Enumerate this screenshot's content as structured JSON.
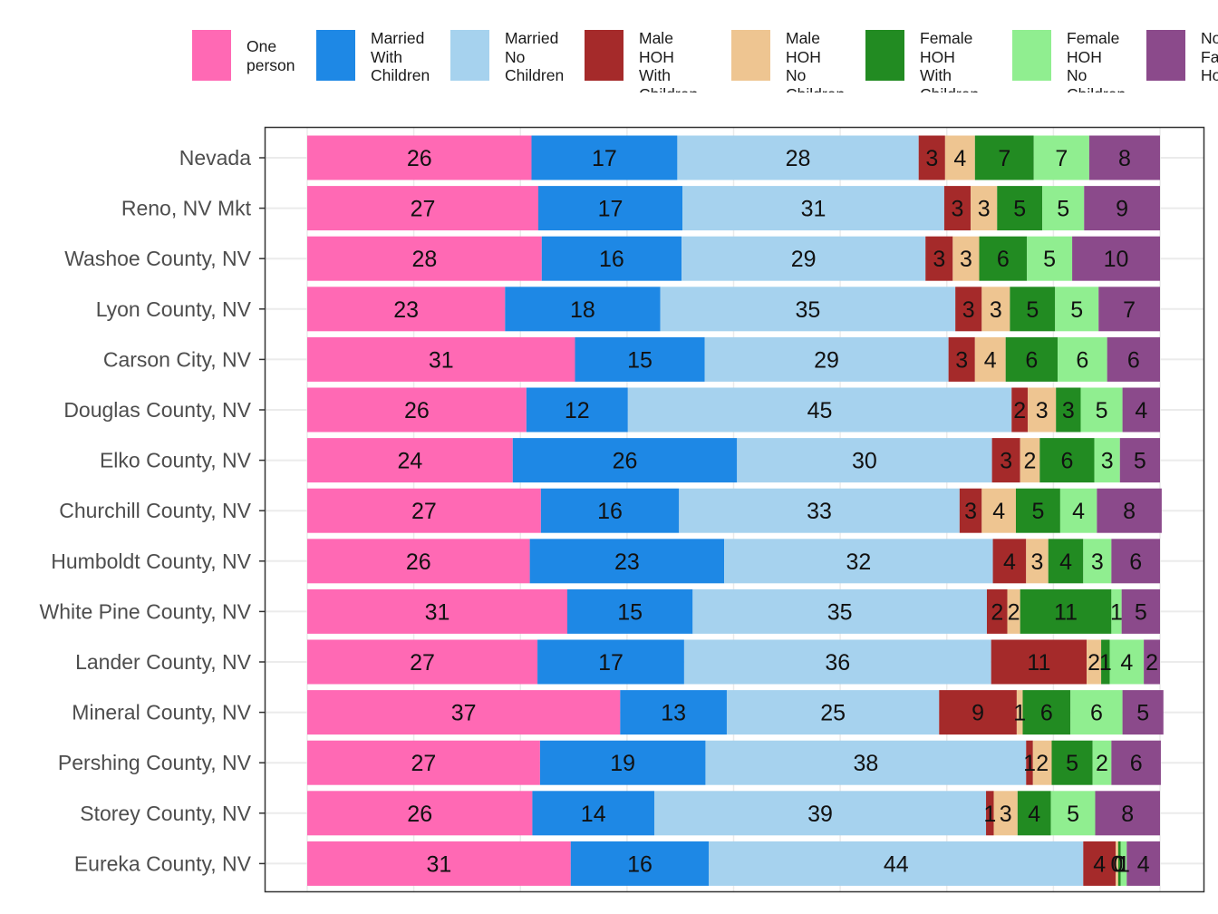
{
  "chart_data": {
    "type": "bar",
    "orientation": "horizontal",
    "stacked": true,
    "title": "",
    "xlabel": "",
    "ylabel": "",
    "xlim": [
      0,
      100
    ],
    "grid": true,
    "legend_position": "top",
    "categories": [
      "Nevada",
      "Reno, NV Mkt",
      "Washoe County, NV",
      "Lyon County, NV",
      "Carson City, NV",
      "Douglas County, NV",
      "Elko County, NV",
      "Churchill County, NV",
      "Humboldt County, NV",
      "White Pine County, NV",
      "Lander County, NV",
      "Mineral County, NV",
      "Pershing County, NV",
      "Storey County, NV",
      "Eureka County, NV"
    ],
    "series": [
      {
        "name": "One\nperson",
        "color": "#ff69b4",
        "values": [
          26.3,
          27.1,
          27.5,
          23.2,
          31.4,
          25.7,
          24.1,
          27.4,
          26.1,
          30.5,
          27.0,
          36.7,
          27.3,
          26.4,
          30.9
        ]
      },
      {
        "name": "Married\nWith\nChildren",
        "color": "#1e88e5",
        "values": [
          17.1,
          16.9,
          16.4,
          18.2,
          15.2,
          11.9,
          26.3,
          16.2,
          22.8,
          14.7,
          17.2,
          12.5,
          19.4,
          14.3,
          16.2
        ]
      },
      {
        "name": "Married\nNo\nChildren",
        "color": "#a6d2ee",
        "values": [
          28.3,
          30.7,
          28.6,
          34.6,
          28.6,
          45.0,
          29.9,
          32.9,
          31.5,
          34.5,
          36.0,
          24.9,
          37.6,
          38.9,
          43.9
        ]
      },
      {
        "name": "Male\nHOH With\nChildren",
        "color": "#a52a2a",
        "values": [
          3.1,
          3.1,
          3.2,
          3.1,
          3.1,
          1.9,
          3.3,
          2.6,
          3.9,
          2.4,
          11.2,
          9.1,
          0.8,
          0.9,
          3.8
        ]
      },
      {
        "name": "Male\nHOH No\nChildren",
        "color": "#eec591",
        "values": [
          3.5,
          3.1,
          3.1,
          3.3,
          3.6,
          3.3,
          2.3,
          4.0,
          2.6,
          1.5,
          1.7,
          0.7,
          2.2,
          2.8,
          0.3
        ]
      },
      {
        "name": "Female\nHOH With\nChildren",
        "color": "#228b22",
        "values": [
          6.9,
          5.3,
          5.6,
          5.3,
          6.1,
          2.9,
          6.4,
          5.2,
          4.1,
          10.7,
          1.0,
          5.6,
          4.8,
          3.9,
          0.3
        ]
      },
      {
        "name": "Female\nHOH No\nChildren",
        "color": "#90ee90",
        "values": [
          6.5,
          4.9,
          5.3,
          5.1,
          5.8,
          4.9,
          3.0,
          4.3,
          3.3,
          1.2,
          4.0,
          6.1,
          2.2,
          5.2,
          0.7
        ]
      },
      {
        "name": "Non\nFamily\nHousehold",
        "color": "#8b4a8b",
        "values": [
          8.3,
          8.9,
          10.3,
          7.2,
          6.2,
          4.4,
          4.7,
          7.6,
          5.7,
          4.5,
          1.9,
          4.8,
          5.8,
          7.6,
          3.9
        ]
      }
    ]
  }
}
